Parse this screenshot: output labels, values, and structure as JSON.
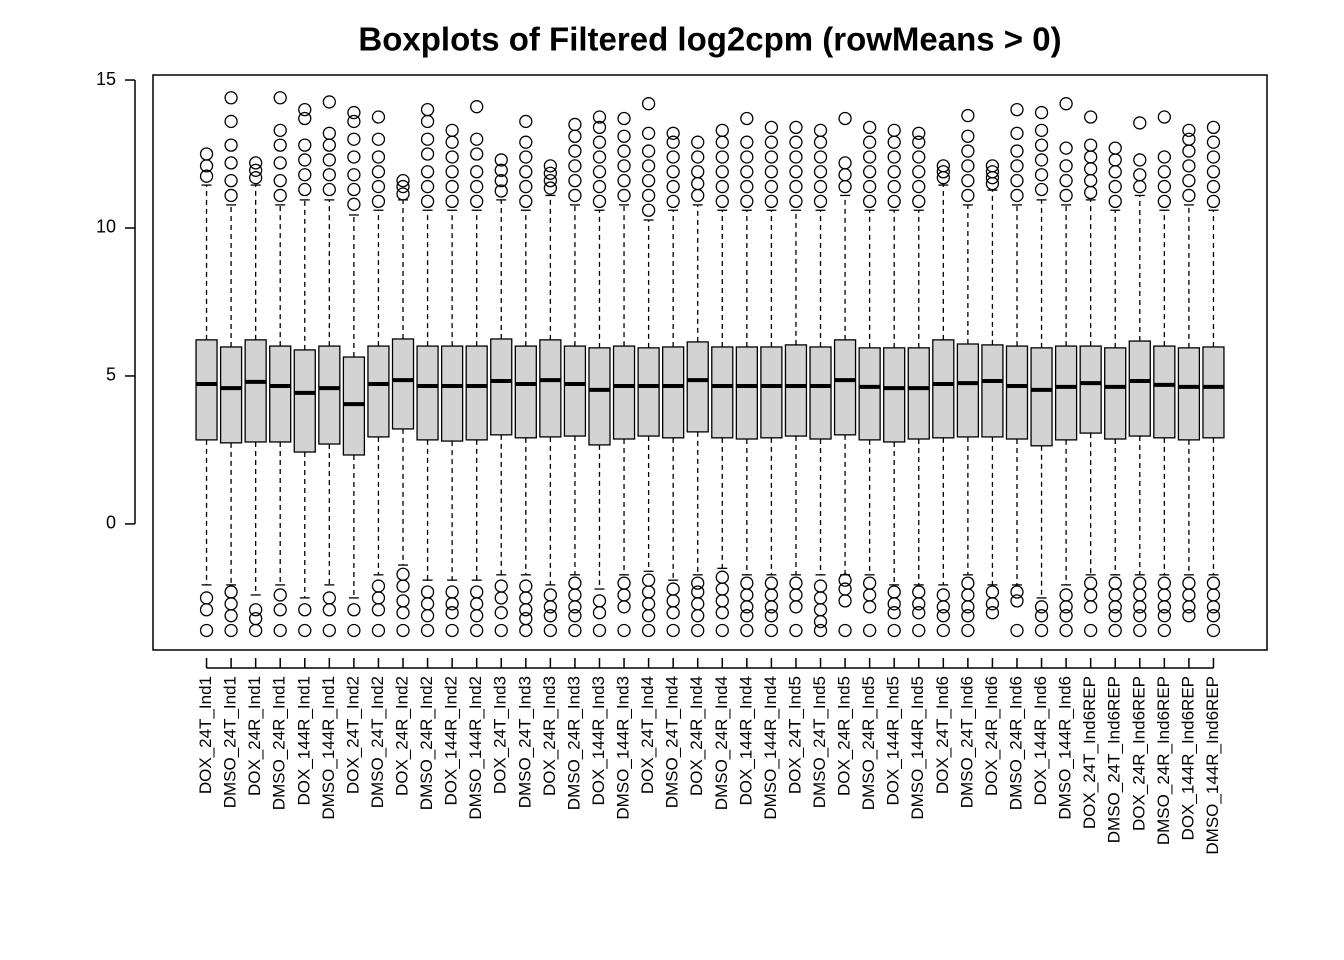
{
  "chart_data": {
    "type": "boxplot",
    "title": "Boxplots of Filtered log2cpm (rowMeans > 0)",
    "categories": [
      "DOX_24T_Ind1",
      "DMSO_24T_Ind1",
      "DOX_24R_Ind1",
      "DMSO_24R_Ind1",
      "DOX_144R_Ind1",
      "DMSO_144R_Ind1",
      "DOX_24T_Ind2",
      "DMSO_24T_Ind2",
      "DOX_24R_Ind2",
      "DMSO_24R_Ind2",
      "DOX_144R_Ind2",
      "DMSO_144R_Ind2",
      "DOX_24T_Ind3",
      "DMSO_24T_Ind3",
      "DOX_24R_Ind3",
      "DMSO_24R_Ind3",
      "DOX_144R_Ind3",
      "DMSO_144R_Ind3",
      "DOX_24T_Ind4",
      "DMSO_24T_Ind4",
      "DOX_24R_Ind4",
      "DMSO_24R_Ind4",
      "DOX_144R_Ind4",
      "DMSO_144R_Ind4",
      "DOX_24T_Ind5",
      "DMSO_24T_Ind5",
      "DOX_24R_Ind5",
      "DMSO_24R_Ind5",
      "DOX_144R_Ind5",
      "DMSO_144R_Ind5",
      "DOX_24T_Ind6",
      "DMSO_24T_Ind6",
      "DOX_24R_Ind6",
      "DMSO_24R_Ind6",
      "DOX_144R_Ind6",
      "DMSO_144R_Ind6",
      "DOX_24T_Ind6REP",
      "DMSO_24T_Ind6REP",
      "DOX_24R_Ind6REP",
      "DMSO_24R_Ind6REP",
      "DOX_144R_Ind6REP",
      "DMSO_144R_Ind6REP"
    ],
    "color": "#d3d3d3",
    "ylim": [
      -4.26,
      15.17
    ],
    "yticks": [
      0,
      5,
      10,
      15
    ],
    "boxes": [
      {
        "low": -2.06,
        "q1": 2.84,
        "median": 4.73,
        "q3": 6.22,
        "high": 11.45,
        "outliers": [
          11.75,
          12.1,
          12.5,
          -2.5,
          -2.9,
          -3.6
        ]
      },
      {
        "low": -2.06,
        "q1": 2.74,
        "median": 4.59,
        "q3": 5.98,
        "high": 10.78,
        "outliers": [
          11.1,
          11.6,
          12.2,
          12.8,
          13.6,
          14.4,
          -2.3,
          -2.7,
          -3.1,
          -3.6
        ]
      },
      {
        "low": -2.4,
        "q1": 2.77,
        "median": 4.8,
        "q3": 6.22,
        "high": 11.45,
        "outliers": [
          11.7,
          11.95,
          12.2,
          -2.9,
          -3.2,
          -3.6
        ]
      },
      {
        "low": -2.06,
        "q1": 2.77,
        "median": 4.66,
        "q3": 6.01,
        "high": 10.78,
        "outliers": [
          11.1,
          11.6,
          12.2,
          12.8,
          13.3,
          14.4,
          -2.4,
          -2.9,
          -3.6
        ]
      },
      {
        "low": -2.5,
        "q1": 2.43,
        "median": 4.43,
        "q3": 5.88,
        "high": 10.95,
        "outliers": [
          11.3,
          11.8,
          12.3,
          12.8,
          13.7,
          14.0,
          -2.9,
          -3.6
        ]
      },
      {
        "low": -2.06,
        "q1": 2.7,
        "median": 4.59,
        "q3": 6.01,
        "high": 10.95,
        "outliers": [
          11.3,
          11.8,
          12.3,
          12.8,
          13.2,
          14.26,
          -2.5,
          -2.9,
          -3.6
        ]
      },
      {
        "low": -2.5,
        "q1": 2.33,
        "median": 4.05,
        "q3": 5.64,
        "high": 10.44,
        "outliers": [
          10.8,
          11.3,
          11.8,
          12.4,
          13.0,
          13.6,
          13.9,
          -2.9,
          -3.6
        ]
      },
      {
        "low": -1.72,
        "q1": 2.94,
        "median": 4.73,
        "q3": 6.01,
        "high": 10.6,
        "outliers": [
          10.9,
          11.4,
          11.9,
          12.4,
          13.0,
          13.75,
          -2.1,
          -2.5,
          -2.9,
          -3.6
        ]
      },
      {
        "low": -1.39,
        "q1": 3.21,
        "median": 4.86,
        "q3": 6.25,
        "high": 10.95,
        "outliers": [
          11.15,
          11.4,
          11.6,
          -1.7,
          -2.1,
          -2.6,
          -3.0,
          -3.6
        ]
      },
      {
        "low": -1.9,
        "q1": 2.84,
        "median": 4.66,
        "q3": 6.01,
        "high": 10.6,
        "outliers": [
          10.9,
          11.4,
          11.9,
          12.5,
          13.0,
          13.6,
          14.0,
          -2.3,
          -2.7,
          -3.1,
          -3.6
        ]
      },
      {
        "low": -1.9,
        "q1": 2.8,
        "median": 4.66,
        "q3": 6.01,
        "high": 10.6,
        "outliers": [
          10.9,
          11.4,
          11.9,
          12.4,
          12.9,
          13.3,
          -2.3,
          -2.7,
          -3.0,
          -3.6
        ]
      },
      {
        "low": -1.9,
        "q1": 2.84,
        "median": 4.66,
        "q3": 6.01,
        "high": 10.6,
        "outliers": [
          10.9,
          11.4,
          11.9,
          12.5,
          13.0,
          14.1,
          -2.3,
          -2.7,
          -3.1,
          -3.6
        ]
      },
      {
        "low": -1.72,
        "q1": 3.01,
        "median": 4.83,
        "q3": 6.25,
        "high": 10.95,
        "outliers": [
          11.25,
          11.6,
          11.95,
          12.3,
          -2.1,
          -2.5,
          -3.0,
          -3.6
        ]
      },
      {
        "low": -1.72,
        "q1": 2.91,
        "median": 4.73,
        "q3": 6.01,
        "high": 10.6,
        "outliers": [
          10.9,
          11.4,
          11.9,
          12.4,
          12.9,
          13.6,
          -2.1,
          -2.5,
          -2.9,
          -3.2,
          -3.6
        ]
      },
      {
        "low": -2.06,
        "q1": 2.94,
        "median": 4.86,
        "q3": 6.22,
        "high": 11.1,
        "outliers": [
          11.35,
          11.6,
          11.85,
          12.1,
          -2.4,
          -2.8,
          -3.1,
          -3.6
        ]
      },
      {
        "low": -1.72,
        "q1": 2.97,
        "median": 4.73,
        "q3": 6.01,
        "high": 10.78,
        "outliers": [
          11.1,
          11.6,
          12.1,
          12.6,
          13.1,
          13.5,
          -2.0,
          -2.4,
          -2.8,
          -3.1,
          -3.6
        ]
      },
      {
        "low": -2.2,
        "q1": 2.67,
        "median": 4.53,
        "q3": 5.95,
        "high": 10.6,
        "outliers": [
          10.9,
          11.4,
          11.9,
          12.4,
          12.9,
          13.4,
          13.75,
          -2.6,
          -3.0,
          -3.6
        ]
      },
      {
        "low": -1.72,
        "q1": 2.87,
        "median": 4.66,
        "q3": 6.01,
        "high": 10.78,
        "outliers": [
          11.1,
          11.6,
          12.1,
          12.6,
          13.1,
          13.7,
          -2.0,
          -2.4,
          -2.8,
          -3.6
        ]
      },
      {
        "low": -1.6,
        "q1": 2.97,
        "median": 4.66,
        "q3": 5.95,
        "high": 10.27,
        "outliers": [
          10.6,
          11.1,
          11.6,
          12.1,
          12.6,
          13.2,
          14.2,
          -1.9,
          -2.3,
          -2.7,
          -3.1,
          -3.6
        ]
      },
      {
        "low": -1.9,
        "q1": 2.91,
        "median": 4.66,
        "q3": 5.98,
        "high": 10.6,
        "outliers": [
          10.9,
          11.4,
          11.9,
          12.4,
          12.9,
          13.2,
          -2.2,
          -2.6,
          -3.0,
          -3.6
        ]
      },
      {
        "low": -1.72,
        "q1": 3.11,
        "median": 4.86,
        "q3": 6.15,
        "high": 10.78,
        "outliers": [
          11.1,
          11.5,
          11.9,
          12.4,
          12.9,
          -2.0,
          -2.3,
          -2.7,
          -3.1,
          -3.6
        ]
      },
      {
        "low": -1.5,
        "q1": 2.91,
        "median": 4.66,
        "q3": 5.98,
        "high": 10.6,
        "outliers": [
          10.9,
          11.4,
          11.9,
          12.4,
          12.9,
          13.3,
          -1.8,
          -2.2,
          -2.6,
          -3.0,
          -3.6
        ]
      },
      {
        "low": -1.72,
        "q1": 2.87,
        "median": 4.66,
        "q3": 5.98,
        "high": 10.6,
        "outliers": [
          10.9,
          11.4,
          11.9,
          12.4,
          12.9,
          13.7,
          -2.0,
          -2.4,
          -2.8,
          -3.1,
          -3.6
        ]
      },
      {
        "low": -1.72,
        "q1": 2.91,
        "median": 4.66,
        "q3": 5.98,
        "high": 10.6,
        "outliers": [
          10.9,
          11.4,
          11.9,
          12.4,
          12.9,
          13.4,
          -2.0,
          -2.4,
          -2.8,
          -3.1,
          -3.6
        ]
      },
      {
        "low": -1.72,
        "q1": 2.97,
        "median": 4.66,
        "q3": 6.05,
        "high": 10.6,
        "outliers": [
          10.9,
          11.4,
          11.9,
          12.4,
          12.9,
          13.4,
          -2.0,
          -2.4,
          -2.8,
          -3.6
        ]
      },
      {
        "low": -1.72,
        "q1": 2.87,
        "median": 4.66,
        "q3": 5.98,
        "high": 10.6,
        "outliers": [
          10.9,
          11.4,
          11.9,
          12.4,
          12.9,
          13.3,
          -2.1,
          -2.5,
          -2.9,
          -3.3,
          -3.6
        ]
      },
      {
        "low": -1.72,
        "q1": 3.01,
        "median": 4.86,
        "q3": 6.22,
        "high": 11.1,
        "outliers": [
          11.4,
          11.8,
          12.2,
          13.7,
          -1.9,
          -2.2,
          -2.6,
          -3.6
        ]
      },
      {
        "low": -1.72,
        "q1": 2.84,
        "median": 4.63,
        "q3": 5.95,
        "high": 10.6,
        "outliers": [
          10.9,
          11.4,
          11.9,
          12.4,
          12.9,
          13.4,
          -2.0,
          -2.4,
          -2.8,
          -3.6
        ]
      },
      {
        "low": -2.06,
        "q1": 2.77,
        "median": 4.59,
        "q3": 5.95,
        "high": 10.6,
        "outliers": [
          10.9,
          11.4,
          11.9,
          12.4,
          12.9,
          13.3,
          -2.3,
          -2.7,
          -3.0,
          -3.6
        ]
      },
      {
        "low": -2.06,
        "q1": 2.87,
        "median": 4.59,
        "q3": 5.95,
        "high": 10.6,
        "outliers": [
          10.9,
          11.4,
          11.9,
          12.4,
          12.9,
          13.2,
          -2.3,
          -2.7,
          -3.0,
          -3.6
        ]
      },
      {
        "low": -2.06,
        "q1": 2.91,
        "median": 4.73,
        "q3": 6.22,
        "high": 11.45,
        "outliers": [
          11.7,
          11.9,
          12.1,
          -2.4,
          -2.8,
          -3.1,
          -3.6
        ]
      },
      {
        "low": -1.72,
        "q1": 2.94,
        "median": 4.76,
        "q3": 6.08,
        "high": 10.78,
        "outliers": [
          11.1,
          11.6,
          12.1,
          12.6,
          13.1,
          13.8,
          -2.0,
          -2.4,
          -2.8,
          -3.1,
          -3.6
        ]
      },
      {
        "low": -2.06,
        "q1": 2.94,
        "median": 4.83,
        "q3": 6.05,
        "high": 11.28,
        "outliers": [
          11.5,
          11.7,
          11.9,
          12.1,
          -2.3,
          -2.7,
          -3.0
        ]
      },
      {
        "low": -2.06,
        "q1": 2.87,
        "median": 4.66,
        "q3": 6.01,
        "high": 10.78,
        "outliers": [
          11.1,
          11.6,
          12.1,
          12.6,
          13.2,
          14.0,
          -2.3,
          -2.6,
          -3.6
        ]
      },
      {
        "low": -2.5,
        "q1": 2.64,
        "median": 4.53,
        "q3": 5.95,
        "high": 10.95,
        "outliers": [
          11.3,
          11.8,
          12.3,
          12.8,
          13.3,
          13.9,
          -2.8,
          -3.1,
          -3.6
        ]
      },
      {
        "low": -2.06,
        "q1": 2.84,
        "median": 4.63,
        "q3": 6.01,
        "high": 10.78,
        "outliers": [
          11.1,
          11.6,
          12.1,
          12.7,
          14.2,
          -2.4,
          -2.8,
          -3.1,
          -3.6
        ]
      },
      {
        "low": -1.72,
        "q1": 3.07,
        "median": 4.76,
        "q3": 6.01,
        "high": 10.95,
        "outliers": [
          11.2,
          11.6,
          12.0,
          12.4,
          12.8,
          13.75,
          -2.0,
          -2.4,
          -2.8,
          -3.6
        ]
      },
      {
        "low": -1.72,
        "q1": 2.87,
        "median": 4.63,
        "q3": 5.95,
        "high": 10.6,
        "outliers": [
          10.9,
          11.4,
          11.9,
          12.3,
          12.7,
          -2.0,
          -2.4,
          -2.8,
          -3.1,
          -3.6
        ]
      },
      {
        "low": -1.72,
        "q1": 2.97,
        "median": 4.83,
        "q3": 6.18,
        "high": 11.1,
        "outliers": [
          11.4,
          11.8,
          12.3,
          13.55,
          -2.0,
          -2.4,
          -2.8,
          -3.1,
          -3.6
        ]
      },
      {
        "low": -1.72,
        "q1": 2.91,
        "median": 4.7,
        "q3": 6.01,
        "high": 10.6,
        "outliers": [
          10.9,
          11.4,
          11.9,
          12.4,
          13.75,
          -2.0,
          -2.4,
          -2.8,
          -3.1,
          -3.6
        ]
      },
      {
        "low": -1.72,
        "q1": 2.84,
        "median": 4.63,
        "q3": 5.95,
        "high": 10.78,
        "outliers": [
          11.1,
          11.6,
          12.1,
          12.6,
          13.0,
          13.3,
          -2.0,
          -2.4,
          -2.8,
          -3.1
        ]
      },
      {
        "low": -1.72,
        "q1": 2.91,
        "median": 4.63,
        "q3": 5.98,
        "high": 10.6,
        "outliers": [
          10.9,
          11.4,
          11.9,
          12.4,
          12.9,
          13.4,
          -2.0,
          -2.4,
          -2.8,
          -3.1,
          -3.6
        ]
      }
    ]
  }
}
